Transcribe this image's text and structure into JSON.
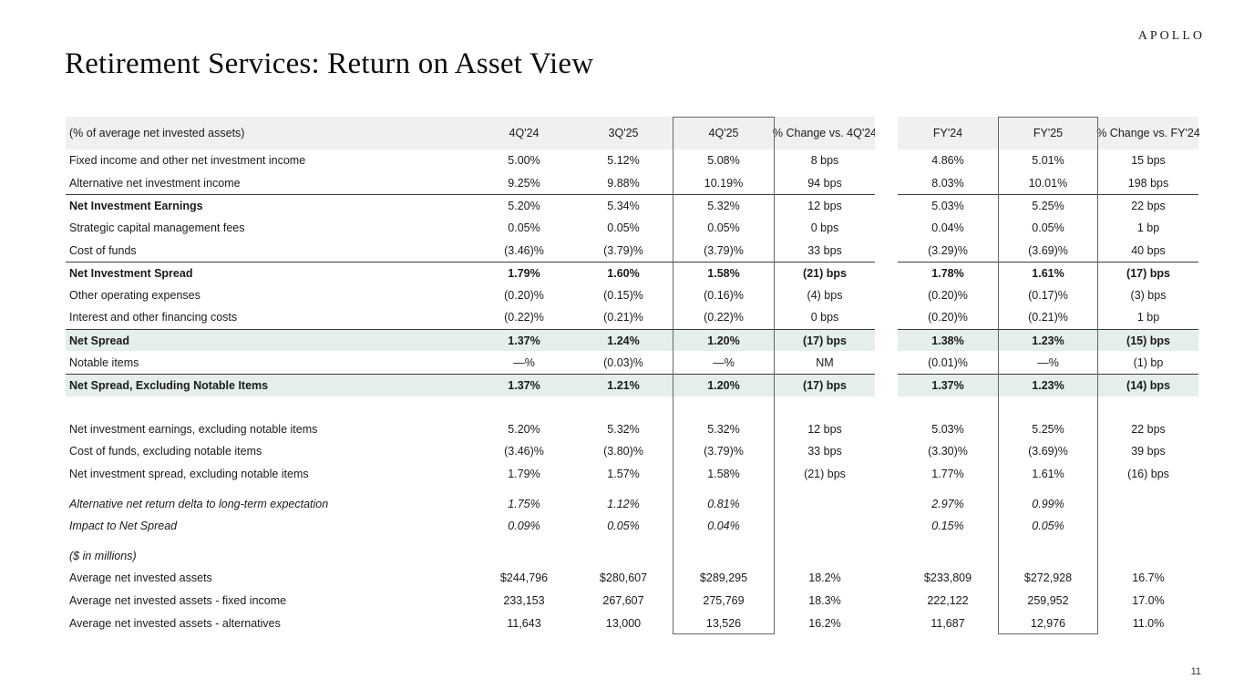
{
  "page": {
    "logo": "APOLLO",
    "title": "Retirement Services: Return on Asset View",
    "page_number": "11"
  },
  "colors": {
    "header_bg": "#f0f0ef",
    "highlight_row_bg": "#e3efe8",
    "box_border": "#666666",
    "rule_line": "#3c3c3c"
  },
  "table": {
    "header": {
      "label": "(% of average net invested assets)",
      "columns": [
        "4Q'24",
        "3Q'25",
        "4Q'25",
        "% Change vs.\n4Q'24",
        "FY'24",
        "FY'25",
        "% Change vs.\nFY'24"
      ]
    },
    "rows": [
      {
        "label": "Fixed income and other net investment income",
        "values": [
          "5.00%",
          "5.12%",
          "5.08%",
          "8 bps",
          "4.86%",
          "5.01%",
          "15 bps"
        ]
      },
      {
        "label": "Alternative net investment income",
        "values": [
          "9.25%",
          "9.88%",
          "10.19%",
          "94 bps",
          "8.03%",
          "10.01%",
          "198 bps"
        ]
      },
      {
        "label": "Net Investment Earnings",
        "boldLabel": true,
        "rule": true,
        "values": [
          "5.20%",
          "5.34%",
          "5.32%",
          "12 bps",
          "5.03%",
          "5.25%",
          "22 bps"
        ]
      },
      {
        "label": "Strategic capital management fees",
        "values": [
          "0.05%",
          "0.05%",
          "0.05%",
          "0 bps",
          "0.04%",
          "0.05%",
          "1 bp"
        ]
      },
      {
        "label": "Cost of funds",
        "values": [
          "(3.46)%",
          "(3.79)%",
          "(3.79)%",
          "33 bps",
          "(3.29)%",
          "(3.69)%",
          "40 bps"
        ]
      },
      {
        "label": "Net Investment Spread",
        "bold": true,
        "rule": true,
        "values": [
          "1.79%",
          "1.60%",
          "1.58%",
          "(21) bps",
          "1.78%",
          "1.61%",
          "(17) bps"
        ]
      },
      {
        "label": "Other operating expenses",
        "values": [
          "(0.20)%",
          "(0.15)%",
          "(0.16)%",
          "(4) bps",
          "(0.20)%",
          "(0.17)%",
          "(3) bps"
        ]
      },
      {
        "label": "Interest and other financing costs",
        "values": [
          "(0.22)%",
          "(0.21)%",
          "(0.22)%",
          "0 bps",
          "(0.20)%",
          "(0.21)%",
          "1 bp"
        ]
      },
      {
        "label": "Net Spread",
        "bold": true,
        "green": true,
        "rule": true,
        "values": [
          "1.37%",
          "1.24%",
          "1.20%",
          "(17) bps",
          "1.38%",
          "1.23%",
          "(15) bps"
        ]
      },
      {
        "label": "Notable items",
        "values": [
          "—%",
          "(0.03)%",
          "—%",
          "NM",
          "(0.01)%",
          "—%",
          "(1) bp"
        ]
      },
      {
        "label": "Net Spread, Excluding Notable Items",
        "bold": true,
        "green": true,
        "rule": true,
        "values": [
          "1.37%",
          "1.21%",
          "1.20%",
          "(17) bps",
          "1.37%",
          "1.23%",
          "(14) bps"
        ]
      },
      {
        "spacer": 24
      },
      {
        "label": "Net investment earnings, excluding notable items",
        "values": [
          "5.20%",
          "5.32%",
          "5.32%",
          "12 bps",
          "5.03%",
          "5.25%",
          "22 bps"
        ]
      },
      {
        "label": "Cost of funds, excluding notable items",
        "values": [
          "(3.46)%",
          "(3.80)%",
          "(3.79)%",
          "33 bps",
          "(3.30)%",
          "(3.69)%",
          "39 bps"
        ]
      },
      {
        "label": "Net investment spread, excluding notable items",
        "values": [
          "1.79%",
          "1.57%",
          "1.58%",
          "(21) bps",
          "1.77%",
          "1.61%",
          "(16) bps"
        ]
      },
      {
        "spacer": 8
      },
      {
        "label": "Alternative net return delta to long-term expectation",
        "italic": true,
        "values": [
          "1.75%",
          "1.12%",
          "0.81%",
          "",
          "2.97%",
          "0.99%",
          ""
        ]
      },
      {
        "label": "Impact to Net Spread",
        "italic": true,
        "indent": true,
        "values": [
          "0.09%",
          "0.05%",
          "0.04%",
          "",
          "0.15%",
          "0.05%",
          ""
        ]
      },
      {
        "spacer": 8
      },
      {
        "label": "($ in millions)",
        "italic": true,
        "values": [
          "",
          "",
          "",
          "",
          "",
          "",
          ""
        ]
      },
      {
        "label": "Average net invested assets",
        "values": [
          "$244,796",
          "$280,607",
          "$289,295",
          "18.2%",
          "$233,809",
          "$272,928",
          "16.7%"
        ]
      },
      {
        "label": "Average net invested assets - fixed income",
        "indent": true,
        "values": [
          "233,153",
          "267,607",
          "275,769",
          "18.3%",
          "222,122",
          "259,952",
          "17.0%"
        ]
      },
      {
        "label": "Average net invested assets - alternatives",
        "indent": true,
        "values": [
          "11,643",
          "13,000",
          "13,526",
          "16.2%",
          "11,687",
          "12,976",
          "11.0%"
        ]
      }
    ]
  }
}
